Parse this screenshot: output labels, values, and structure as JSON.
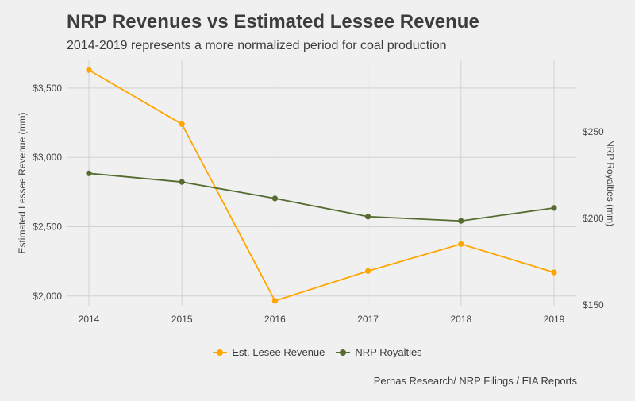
{
  "chart_data": {
    "type": "line",
    "title": "NRP Revenues vs Estimated Lessee Revenue",
    "subtitle": "2014-2019 represents a more normalized period for coal production",
    "caption": "Pernas Research/ NRP Filings / EIA Reports",
    "categories": [
      "2014",
      "2015",
      "2016",
      "2017",
      "2018",
      "2019"
    ],
    "xlabel": "",
    "series": [
      {
        "name": "Est. Lesee Revenue",
        "axis": "left",
        "color": "#FFA500",
        "values": [
          3630,
          3240,
          1965,
          2180,
          2375,
          2170
        ]
      },
      {
        "name": "NRP Royalties",
        "axis": "right",
        "color": "#556B2F",
        "values": [
          226,
          221,
          211.5,
          201,
          198.5,
          206
        ]
      }
    ],
    "y_left": {
      "label": "Estimated Lessee Revenue (mm)",
      "lim": [
        1930,
        3700
      ],
      "ticks": [
        2000,
        2500,
        3000,
        3500
      ],
      "tick_labels": [
        "$2,000",
        "$2,500",
        "$3,000",
        "$3,500"
      ]
    },
    "y_right": {
      "label": "NRP Royalties (mm)",
      "lim": [
        149.5,
        291.3
      ],
      "ticks": [
        150,
        200,
        250
      ],
      "tick_labels": [
        "$150",
        "$200",
        "$250"
      ]
    },
    "grid": true,
    "legend_position": "bottom"
  }
}
